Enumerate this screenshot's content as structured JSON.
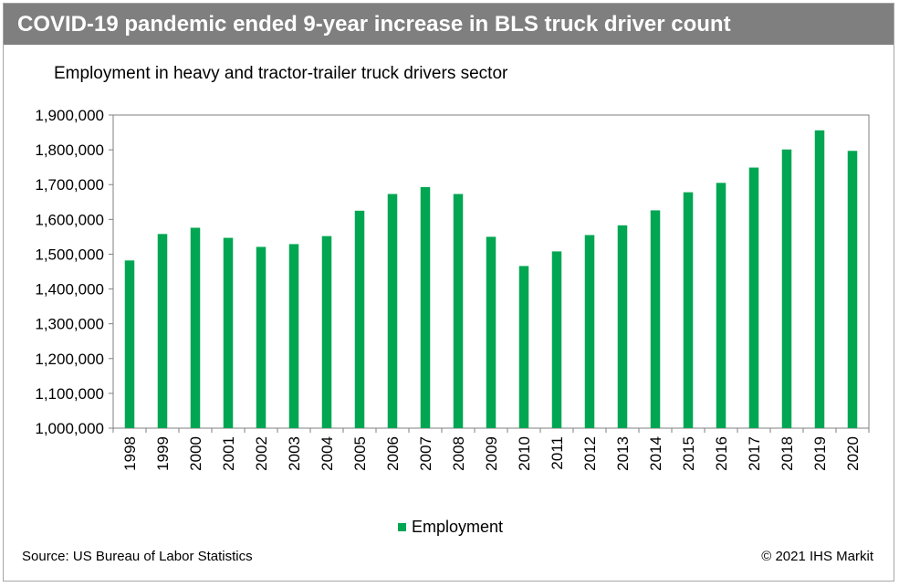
{
  "header": {
    "title": "COVID-19 pandemic ended 9-year increase in BLS truck driver count"
  },
  "footer": {
    "source": "Source: US Bureau of Labor Statistics",
    "copyright": "© 2021 IHS Markit"
  },
  "colors": {
    "bar": "#00a651",
    "title_bg": "#7f7f7f"
  },
  "chart_data": {
    "type": "bar",
    "title": "Employment in heavy and tractor-trailer truck drivers sector",
    "xlabel": "",
    "ylabel": "",
    "categories": [
      "1998",
      "1999",
      "2000",
      "2001",
      "2002",
      "2003",
      "2004",
      "2005",
      "2006",
      "2007",
      "2008",
      "2009",
      "2010",
      "2011",
      "2012",
      "2013",
      "2014",
      "2015",
      "2016",
      "2017",
      "2018",
      "2019",
      "2020"
    ],
    "series": [
      {
        "name": "Employment",
        "values": [
          1482000,
          1558000,
          1576000,
          1547000,
          1521000,
          1529000,
          1552000,
          1625000,
          1673000,
          1693000,
          1673000,
          1550000,
          1466000,
          1508000,
          1555000,
          1583000,
          1626000,
          1678000,
          1705000,
          1749000,
          1801000,
          1856000,
          1797000
        ]
      }
    ],
    "ylim": [
      1000000,
      1900000
    ],
    "yticks": [
      1000000,
      1100000,
      1200000,
      1300000,
      1400000,
      1500000,
      1600000,
      1700000,
      1800000,
      1900000
    ],
    "ytick_labels": [
      "1,000,000",
      "1,100,000",
      "1,200,000",
      "1,300,000",
      "1,400,000",
      "1,500,000",
      "1,600,000",
      "1,700,000",
      "1,800,000",
      "1,900,000"
    ],
    "grid": false,
    "legend_position": "bottom-center"
  }
}
